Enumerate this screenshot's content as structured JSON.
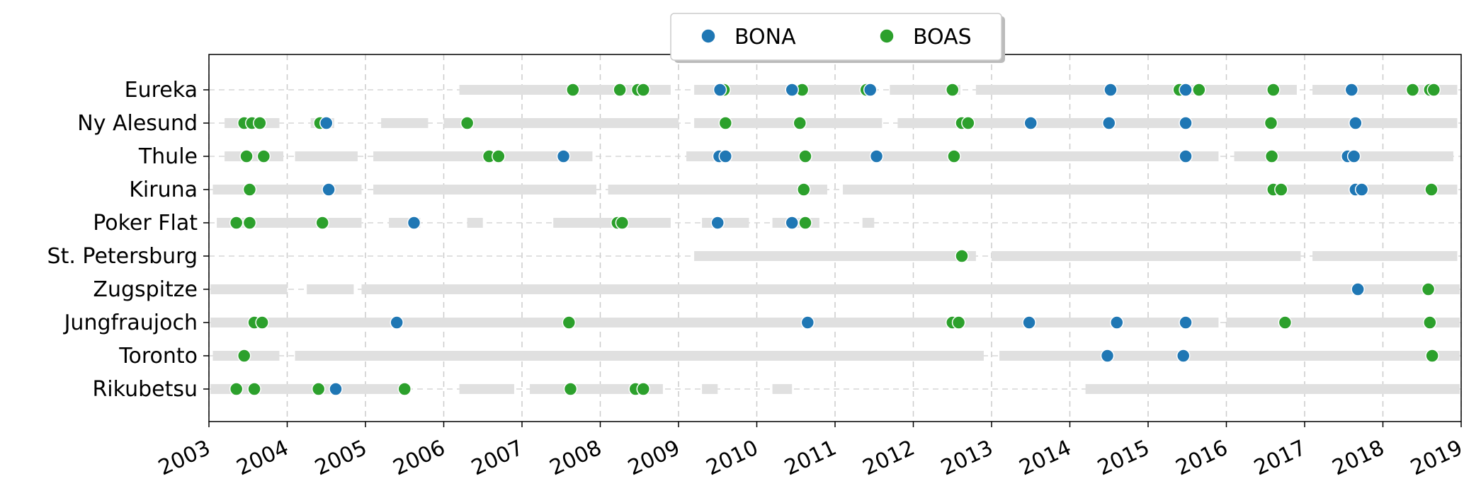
{
  "chart_data": {
    "type": "scatter",
    "title": "",
    "xlabel": "",
    "ylabel": "",
    "xlim": [
      2003,
      2019
    ],
    "x_ticks": [
      "2003",
      "2004",
      "2005",
      "2006",
      "2007",
      "2008",
      "2009",
      "2010",
      "2011",
      "2012",
      "2013",
      "2014",
      "2015",
      "2016",
      "2017",
      "2018",
      "2019"
    ],
    "categories": [
      "Eureka",
      "Ny Alesund",
      "Thule",
      "Kiruna",
      "Poker Flat",
      "St. Petersburg",
      "Zugspitze",
      "Jungfraujoch",
      "Toronto",
      "Rikubetsu"
    ],
    "grid": true,
    "legend": {
      "placement": "top-center",
      "entries": [
        "BONA",
        "BOAS"
      ]
    },
    "colors": {
      "BONA": "#1f77b4",
      "BOAS": "#2ca02c",
      "coverage": "#e0e0e0"
    },
    "series": [
      {
        "name": "BONA",
        "points": [
          {
            "station": "Eureka",
            "x": [
              2009.53,
              2010.45,
              2011.45,
              2014.52,
              2015.48,
              2017.6
            ]
          },
          {
            "station": "Ny Alesund",
            "x": [
              2004.5,
              2013.5,
              2014.5,
              2015.48,
              2017.65
            ]
          },
          {
            "station": "Thule",
            "x": [
              2007.53,
              2009.52,
              2009.6,
              2011.53,
              2015.48,
              2017.55,
              2017.63
            ]
          },
          {
            "station": "Kiruna",
            "x": [
              2004.53,
              2017.65,
              2017.73
            ]
          },
          {
            "station": "Poker Flat",
            "x": [
              2005.62,
              2009.5,
              2010.45
            ]
          },
          {
            "station": "St. Petersburg",
            "x": []
          },
          {
            "station": "Zugspitze",
            "x": [
              2017.68
            ]
          },
          {
            "station": "Jungfraujoch",
            "x": [
              2005.4,
              2010.65,
              2013.48,
              2014.6,
              2015.48
            ]
          },
          {
            "station": "Toronto",
            "x": [
              2014.48,
              2015.45
            ]
          },
          {
            "station": "Rikubetsu",
            "x": [
              2004.62
            ]
          }
        ]
      },
      {
        "name": "BOAS",
        "points": [
          {
            "station": "Eureka",
            "x": [
              2007.65,
              2008.25,
              2008.48,
              2008.55,
              2009.58,
              2010.58,
              2011.4,
              2012.5,
              2015.4,
              2015.65,
              2016.6,
              2018.38,
              2018.6,
              2018.65
            ]
          },
          {
            "station": "Ny Alesund",
            "x": [
              2003.45,
              2003.55,
              2003.65,
              2004.42,
              2006.3,
              2009.6,
              2010.55,
              2012.62,
              2012.7,
              2016.57
            ]
          },
          {
            "station": "Thule",
            "x": [
              2003.48,
              2003.7,
              2006.58,
              2006.7,
              2010.62,
              2012.52,
              2016.58
            ]
          },
          {
            "station": "Kiruna",
            "x": [
              2003.52,
              2010.6,
              2016.6,
              2016.7,
              2018.62
            ]
          },
          {
            "station": "Poker Flat",
            "x": [
              2003.35,
              2003.52,
              2004.45,
              2008.22,
              2008.28,
              2010.62
            ]
          },
          {
            "station": "St. Petersburg",
            "x": [
              2012.62
            ]
          },
          {
            "station": "Zugspitze",
            "x": [
              2018.58
            ]
          },
          {
            "station": "Jungfraujoch",
            "x": [
              2003.58,
              2003.68,
              2007.6,
              2012.5,
              2012.58,
              2016.75,
              2018.6
            ]
          },
          {
            "station": "Toronto",
            "x": [
              2003.45,
              2018.63
            ]
          },
          {
            "station": "Rikubetsu",
            "x": [
              2003.35,
              2003.58,
              2004.4,
              2005.5,
              2007.62,
              2008.45,
              2008.55
            ]
          }
        ]
      }
    ],
    "coverage": [
      {
        "station": "Eureka",
        "ranges": [
          [
            2006.2,
            2008.9
          ],
          [
            2009.2,
            2011.5
          ],
          [
            2011.7,
            2012.6
          ],
          [
            2012.8,
            2016.9
          ],
          [
            2017.1,
            2018.95
          ]
        ]
      },
      {
        "station": "Ny Alesund",
        "ranges": [
          [
            2003.2,
            2003.9
          ],
          [
            2004.3,
            2004.6
          ],
          [
            2005.2,
            2005.8
          ],
          [
            2006.0,
            2009.0
          ],
          [
            2009.2,
            2011.6
          ],
          [
            2011.8,
            2018.95
          ]
        ]
      },
      {
        "station": "Thule",
        "ranges": [
          [
            2003.2,
            2003.95
          ],
          [
            2004.1,
            2004.9
          ],
          [
            2005.1,
            2007.9
          ],
          [
            2009.1,
            2015.9
          ],
          [
            2016.1,
            2018.9
          ]
        ]
      },
      {
        "station": "Kiruna",
        "ranges": [
          [
            2003.05,
            2004.95
          ],
          [
            2005.1,
            2007.95
          ],
          [
            2008.1,
            2010.9
          ],
          [
            2011.1,
            2018.95
          ]
        ]
      },
      {
        "station": "Poker Flat",
        "ranges": [
          [
            2003.1,
            2004.95
          ],
          [
            2005.3,
            2005.7
          ],
          [
            2006.3,
            2006.5
          ],
          [
            2007.4,
            2008.9
          ],
          [
            2009.3,
            2009.9
          ],
          [
            2010.2,
            2010.8
          ],
          [
            2011.35,
            2011.5
          ]
        ]
      },
      {
        "station": "St. Petersburg",
        "ranges": [
          [
            2009.2,
            2012.8
          ],
          [
            2013.0,
            2016.95
          ],
          [
            2017.1,
            2018.95
          ]
        ]
      },
      {
        "station": "Zugspitze",
        "ranges": [
          [
            2003.02,
            2004.0
          ],
          [
            2004.25,
            2004.85
          ],
          [
            2004.95,
            2018.98
          ]
        ]
      },
      {
        "station": "Jungfraujoch",
        "ranges": [
          [
            2003.02,
            2015.9
          ],
          [
            2016.0,
            2018.98
          ]
        ]
      },
      {
        "station": "Toronto",
        "ranges": [
          [
            2003.05,
            2003.9
          ],
          [
            2004.1,
            2012.9
          ],
          [
            2013.1,
            2018.98
          ]
        ]
      },
      {
        "station": "Rikubetsu",
        "ranges": [
          [
            2003.02,
            2005.5
          ],
          [
            2006.2,
            2006.9
          ],
          [
            2007.1,
            2008.8
          ],
          [
            2009.3,
            2009.5
          ],
          [
            2010.2,
            2010.45
          ],
          [
            2014.2,
            2018.98
          ]
        ]
      }
    ]
  }
}
